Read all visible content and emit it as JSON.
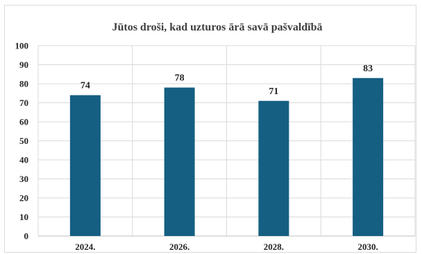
{
  "chart_data": {
    "type": "bar",
    "title": "Jūtos droši, kad uzturos ārā savā pašvaldībā",
    "categories": [
      "2024.",
      "2026.",
      "2028.",
      "2030."
    ],
    "values": [
      74,
      78,
      71,
      83
    ],
    "data_labels": [
      "74",
      "78",
      "71",
      "83"
    ],
    "ylim": [
      0,
      100
    ],
    "yticks": [
      "0",
      "10",
      "20",
      "30",
      "40",
      "50",
      "60",
      "70",
      "80",
      "90",
      "100"
    ],
    "ytick_values": [
      0,
      10,
      20,
      30,
      40,
      50,
      60,
      70,
      80,
      90,
      100
    ],
    "xlabel": "",
    "ylabel": "",
    "grid": true,
    "legend": "none",
    "colors": {
      "bar": "#145f82",
      "grid": "#d9d9d9",
      "axis": "#bfbfbf"
    }
  }
}
